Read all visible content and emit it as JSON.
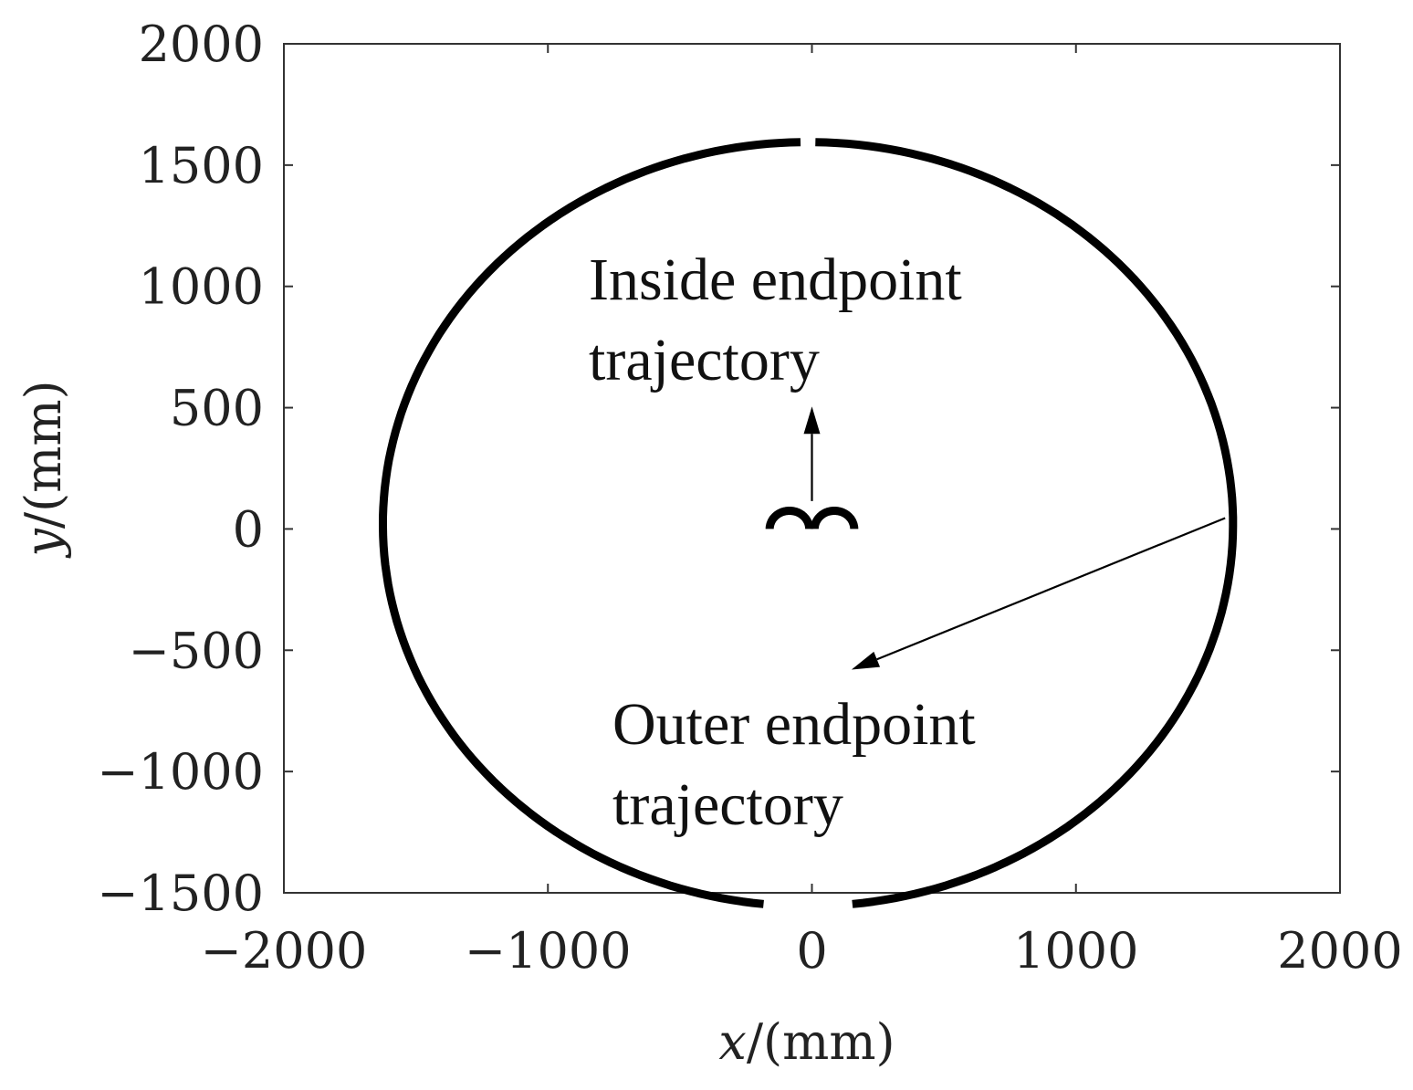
{
  "chart_data": {
    "type": "line",
    "title": "",
    "xlabel": {
      "var": "x",
      "unit": "/(mm)"
    },
    "ylabel": {
      "var": "y",
      "unit": "/(mm)"
    },
    "xlim": [
      -2000,
      2000
    ],
    "ylim": [
      -1500,
      2000
    ],
    "xticks": [
      -2000,
      -1000,
      0,
      1000,
      2000
    ],
    "yticks": [
      -1500,
      -1000,
      -500,
      0,
      500,
      1000,
      1500,
      2000
    ],
    "xtick_labels": [
      "−2000",
      "−1000",
      "0",
      "1000",
      "2000"
    ],
    "ytick_labels": [
      "−1500",
      "−1000",
      "−500",
      "0",
      "500",
      "1000",
      "1500",
      "2000"
    ],
    "grid": false,
    "series": [
      {
        "curve": "outer",
        "color": "#000000",
        "segments": [
          {
            "from_deg": 91,
            "to_deg": 264,
            "center": [
              -15,
              20
            ],
            "radius": [
              1610,
              1575
            ]
          },
          {
            "from_deg": 89,
            "to_deg": -84,
            "center": [
              -15,
              20
            ],
            "radius": [
              1610,
              1575
            ]
          }
        ]
      },
      {
        "curve": "inner",
        "color": "#000000",
        "segments": [
          {
            "from_deg": 0,
            "to_deg": 180,
            "center": [
              -85,
              0
            ],
            "radius": [
              75,
              75
            ]
          },
          {
            "from_deg": 0,
            "to_deg": 180,
            "center": [
              85,
              0
            ],
            "radius": [
              75,
              75
            ]
          }
        ]
      }
    ],
    "annotations": [
      {
        "id": "inside",
        "lines": [
          "Inside endpoint",
          "trajectory"
        ],
        "arrow_from": [
          0,
          115
        ],
        "arrow_to": [
          0,
          505
        ]
      },
      {
        "id": "outer",
        "lines": [
          "Outer endpoint",
          "trajectory"
        ],
        "arrow_from": [
          1565,
          45
        ],
        "arrow_to": [
          150,
          -580
        ]
      }
    ]
  }
}
